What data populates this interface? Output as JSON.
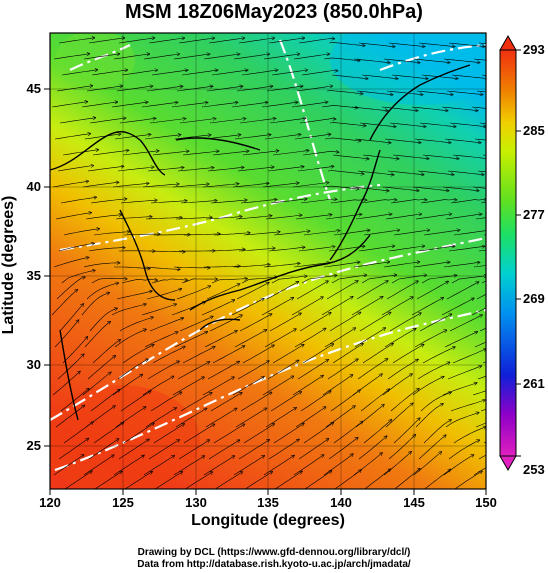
{
  "title": "MSM 18Z06May2023 (850.0hPa)",
  "x_axis": {
    "label": "Longitude (degrees)",
    "range": [
      120,
      150
    ],
    "ticks": [
      "120",
      "125",
      "130",
      "135",
      "140",
      "145",
      "150"
    ]
  },
  "y_axis": {
    "label": "Latitude  (degrees)",
    "range": [
      22.4,
      47.6
    ],
    "ticks": [
      "25",
      "30",
      "35",
      "40",
      "45"
    ]
  },
  "colorbar": {
    "ticks": [
      "293",
      "285",
      "277",
      "269",
      "261",
      "253"
    ],
    "min": 253,
    "max": 293,
    "colors": [
      "#e020c0",
      "#9000c8",
      "#1020d8",
      "#0090f0",
      "#00d0d0",
      "#20e060",
      "#60e020",
      "#c8f000",
      "#f0d000",
      "#f08000",
      "#f03010"
    ]
  },
  "credits": [
    "Drawing by DCL (https://www.gfd-dennou.org/library/dcl/)",
    "Data from http://database.rish.kyoto-u.ac.jp/arch/jmadata/"
  ],
  "legend_colors": {
    "warm": "#f06010",
    "mid": "#c8f000",
    "green": "#40d840",
    "cool": "#00d0e0",
    "coast": "#000000",
    "isotherm": "#ffffff"
  }
}
